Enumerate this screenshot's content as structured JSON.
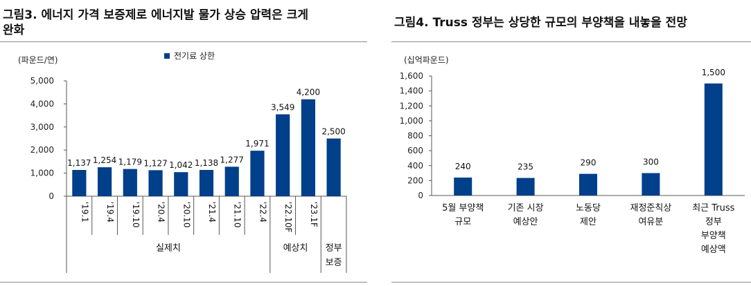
{
  "left": {
    "title_line1": "그림3. 에너지 가격 보증제로 에너지발 물가 상승 압력은 크게",
    "title_line2": "완화",
    "chart_data": {
      "type": "bar",
      "unit": "(파운드/연)",
      "legend": "전기료 상한",
      "color": "#003f8a",
      "categories": [
        "'19.1",
        "'19.4",
        "'19.10",
        "'20.4",
        "'20.10",
        "'21.4",
        "'21.10",
        "'22.4",
        "'22.10F",
        "'23.1F",
        "정부보증"
      ],
      "series": [
        {
          "name": "전기료 상한",
          "values": [
            1137,
            1254,
            1179,
            1127,
            1042,
            1138,
            1277,
            1971,
            3549,
            4200,
            2500
          ]
        }
      ],
      "value_labels": [
        "1,137",
        "1,254",
        "1,179",
        "1,127",
        "1,042",
        "1,138",
        "1,277",
        "1,971",
        "3,549",
        "4,200",
        "2,500"
      ],
      "yticks": [
        "0",
        "1,000",
        "2,000",
        "3,000",
        "4,000",
        "5,000"
      ],
      "ylim": [
        0,
        5000
      ],
      "groups": [
        {
          "label": "실제치",
          "start": 0,
          "end": 8
        },
        {
          "label": "예상치",
          "start": 8,
          "end": 10
        },
        {
          "label": "정부보증",
          "start": 10,
          "end": 11
        }
      ]
    }
  },
  "right": {
    "title": "그림4. Truss 정부는 상당한 규모의 부양책을 내놓을 전망",
    "chart_data": {
      "type": "bar",
      "unit": "(십억파운드)",
      "color": "#003f8a",
      "categories": [
        "5월 부양책 규모",
        "기존 시장 예상안",
        "노동당 제안",
        "재정준칙상 여유분",
        "최근 Truss 정부 부양책 예상액"
      ],
      "category_lines": [
        [
          "5월 부양책",
          "규모"
        ],
        [
          "기존 시장",
          "예상안"
        ],
        [
          "노동당",
          "제안"
        ],
        [
          "재정준칙상",
          "여유분"
        ],
        [
          "최근 Truss",
          "정부",
          "부양책",
          "예상액"
        ]
      ],
      "values": [
        240,
        235,
        290,
        300,
        1500
      ],
      "value_labels": [
        "240",
        "235",
        "290",
        "300",
        "1,500"
      ],
      "yticks": [
        "0",
        "200",
        "400",
        "600",
        "800",
        "1,000",
        "1,200",
        "1,400",
        "1,600"
      ],
      "ylim": [
        0,
        1600
      ]
    }
  }
}
